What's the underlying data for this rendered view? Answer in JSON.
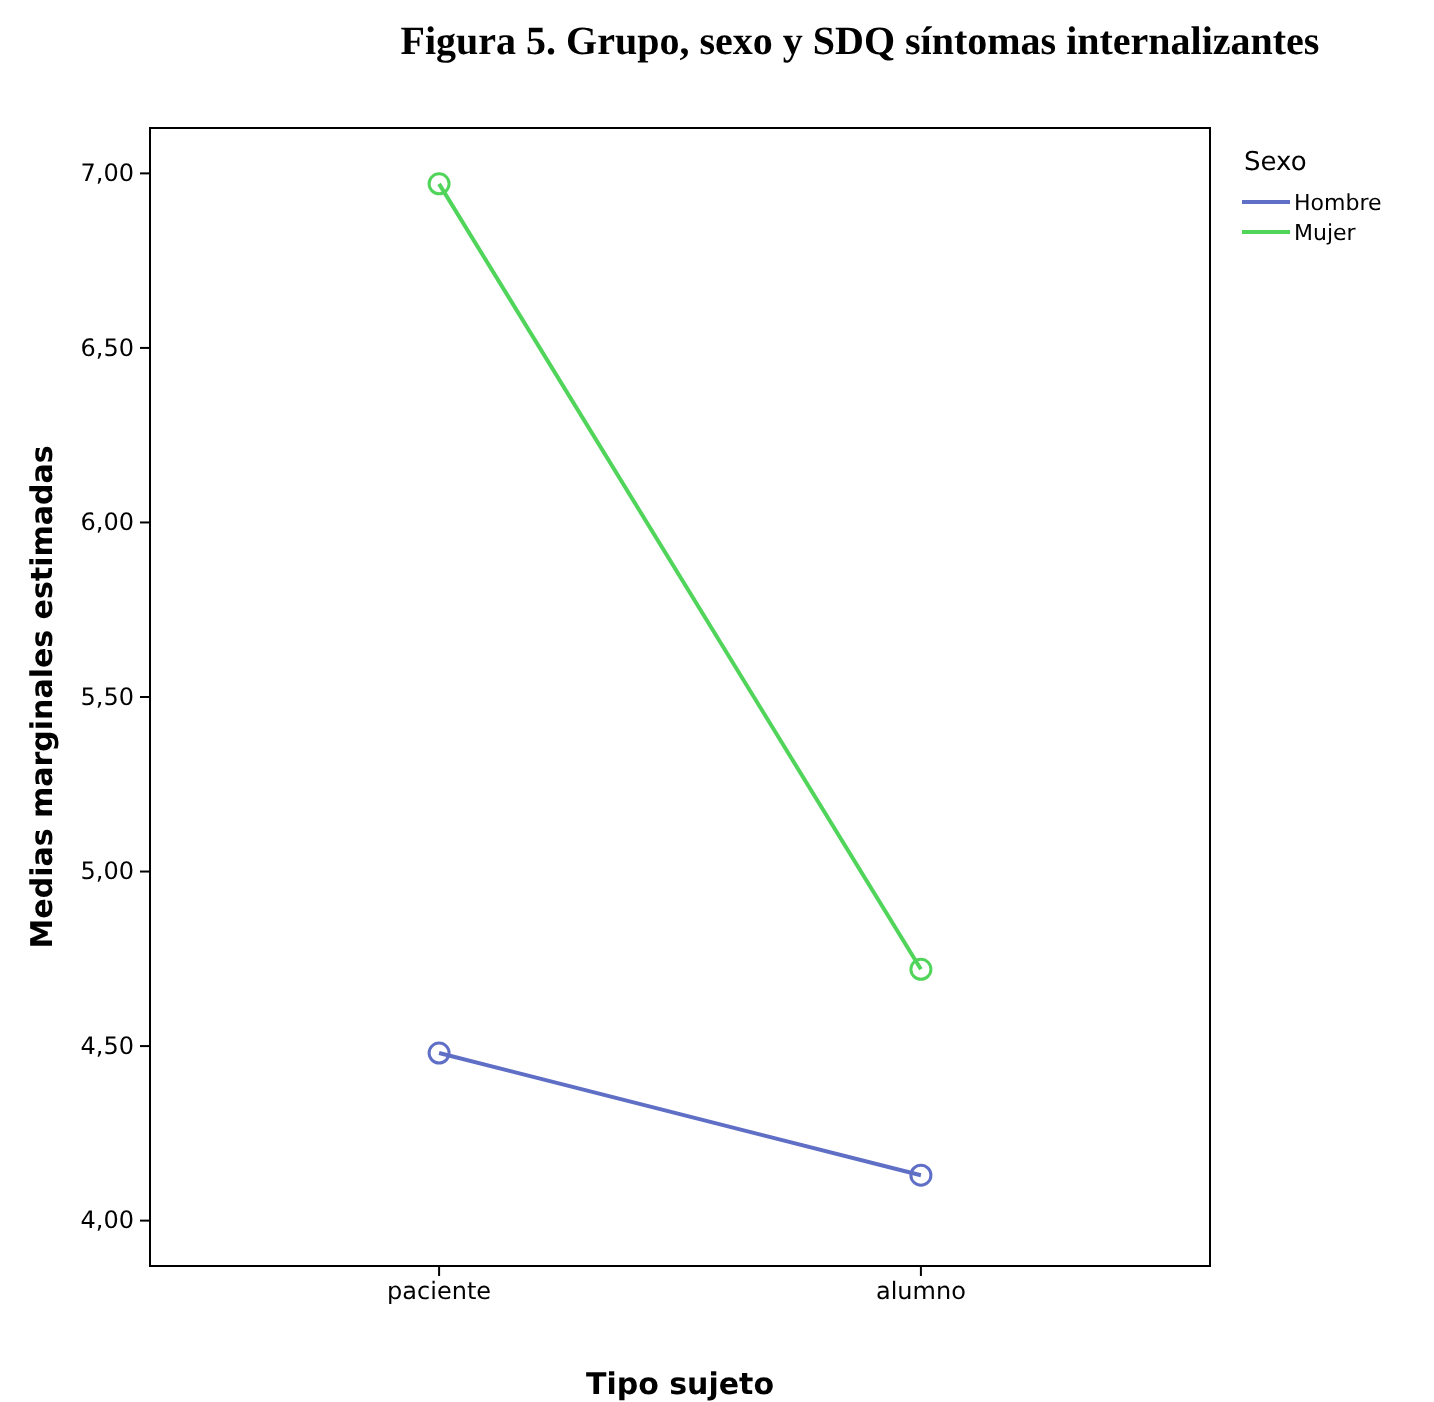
{
  "chart_data": {
    "type": "line",
    "title": "Figura 5. Grupo, sexo y SDQ síntomas internalizantes",
    "xlabel": "Tipo sujeto",
    "ylabel": "Medias marginales estimadas",
    "legend_title": "Sexo",
    "categories": [
      "paciente",
      "alumno"
    ],
    "series": [
      {
        "name": "Hombre",
        "color": "#5f6fc6",
        "values": [
          4.48,
          4.13
        ]
      },
      {
        "name": "Mujer",
        "color": "#50d45a",
        "values": [
          6.97,
          4.72
        ]
      }
    ],
    "ylim": [
      3.87,
      7.13
    ],
    "yticks": [
      {
        "value": 4,
        "label": "4,00"
      },
      {
        "value": 4.5,
        "label": "4,50"
      },
      {
        "value": 5,
        "label": "5,00"
      },
      {
        "value": 5.5,
        "label": "5,50"
      },
      {
        "value": 6,
        "label": "6,00"
      },
      {
        "value": 6.5,
        "label": "6,50"
      },
      {
        "value": 7,
        "label": "7,00"
      }
    ],
    "marker": "circle",
    "legend": "top right",
    "grid": false
  }
}
